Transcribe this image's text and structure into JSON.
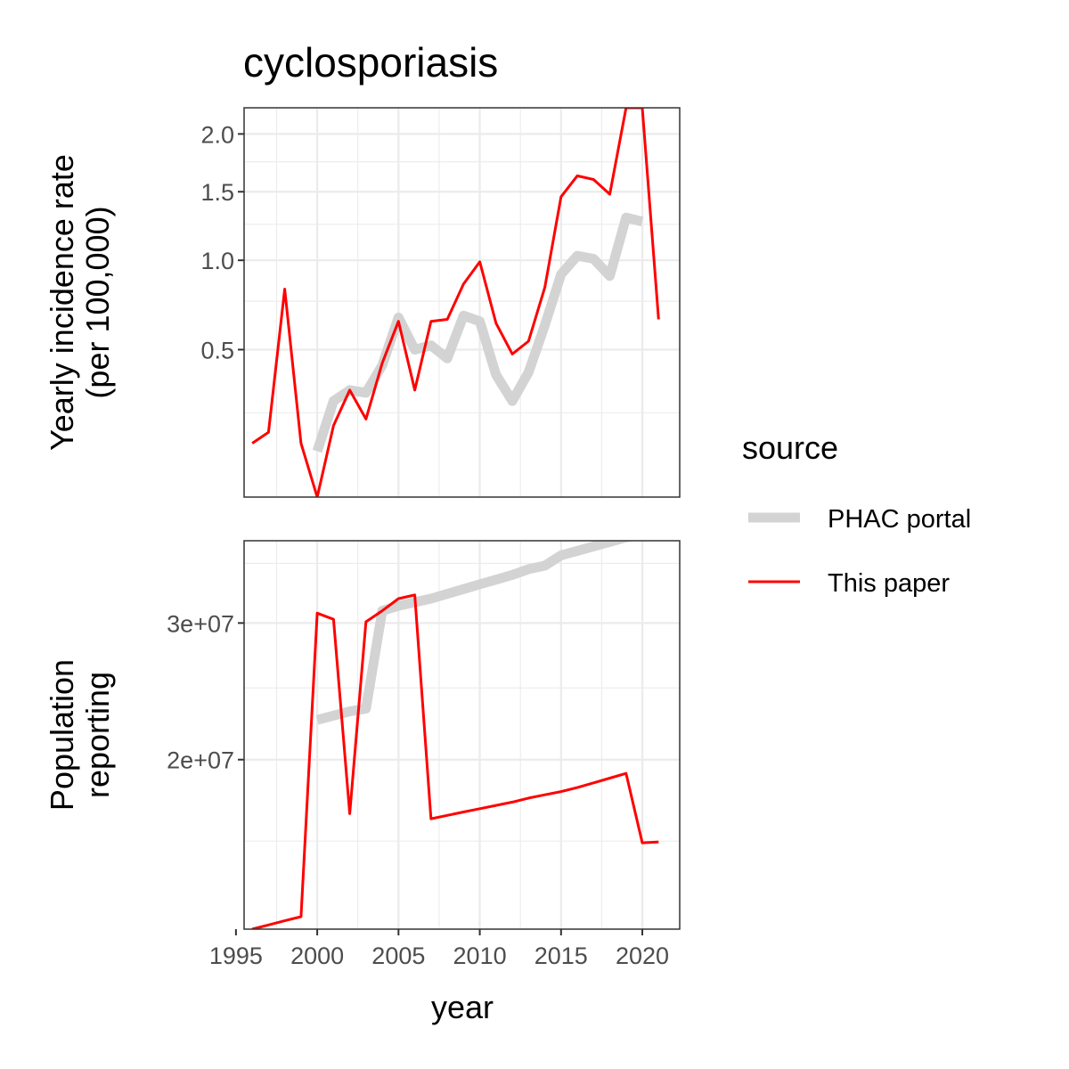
{
  "chart_data": {
    "type": "line",
    "title": "cyclosporiasis",
    "xlabel": "year",
    "x_ticks": [
      1995,
      2000,
      2005,
      2010,
      2015,
      2020
    ],
    "xlim": [
      1995.5,
      2022.3
    ],
    "legend": {
      "title": "source",
      "placement": "right",
      "entries": [
        {
          "label": "PHAC portal",
          "color": "#d3d3d3"
        },
        {
          "label": "This paper",
          "color": "#ff0000"
        }
      ]
    },
    "panels": [
      {
        "id": "incidence",
        "ylabel_lines": [
          "Yearly incidence rate",
          "(per 100,000)"
        ],
        "y_scale": "sqrt",
        "ylim": [
          0.05,
          2.25
        ],
        "y_ticks": [
          0.5,
          1.0,
          1.5,
          2.0
        ],
        "y_tick_labels": [
          "0.5",
          "1.0",
          "1.5",
          "2.0"
        ],
        "y_minor": [
          0.25,
          0.75,
          1.25,
          1.75
        ],
        "grid": true,
        "series": [
          {
            "name": "PHAC portal",
            "color": "#d3d3d3",
            "x": [
              2000,
              2001,
              2002,
              2003,
              2004,
              2005,
              2006,
              2007,
              2008,
              2009,
              2010,
              2011,
              2012,
              2013,
              2014,
              2015,
              2016,
              2017,
              2018,
              2019,
              2020
            ],
            "y": [
              0.14,
              0.29,
              0.33,
              0.32,
              0.43,
              0.66,
              0.5,
              0.52,
              0.46,
              0.67,
              0.64,
              0.39,
              0.29,
              0.4,
              0.62,
              0.91,
              1.03,
              1.01,
              0.9,
              1.3,
              1.27
            ]
          },
          {
            "name": "This paper",
            "color": "#ff0000",
            "x": [
              1996,
              1997,
              1998,
              1999,
              2000,
              2001,
              2002,
              2003,
              2004,
              2005,
              2006,
              2007,
              2008,
              2009,
              2010,
              2011,
              2012,
              2013,
              2014,
              2015,
              2016,
              2017,
              2018,
              2019,
              2020,
              2021
            ],
            "y": [
              0.16,
              0.19,
              0.82,
              0.16,
              0.05,
              0.21,
              0.33,
              0.23,
              0.44,
              0.64,
              0.33,
              0.64,
              0.65,
              0.85,
              0.99,
              0.63,
              0.48,
              0.54,
              0.83,
              1.46,
              1.63,
              1.6,
              1.48,
              2.25,
              2.25,
              0.65
            ]
          }
        ]
      },
      {
        "id": "population",
        "ylabel_lines": [
          "Population",
          "reporting"
        ],
        "y_scale": "sqrt",
        "ylim": [
          10400000,
          37000000
        ],
        "y_ticks": [
          20000000,
          30000000
        ],
        "y_tick_labels": [
          "2e+07",
          "3e+07"
        ],
        "y_minor": [
          15000000,
          25000000,
          35000000
        ],
        "grid": true,
        "series": [
          {
            "name": "PHAC portal",
            "color": "#d3d3d3",
            "x": [
              2000,
              2001,
              2002,
              2003,
              2004,
              2005,
              2006,
              2007,
              2008,
              2009,
              2010,
              2011,
              2012,
              2013,
              2014,
              2015,
              2016,
              2017,
              2018,
              2019,
              2020
            ],
            "y": [
              22700000,
              23000000,
              23300000,
              23500000,
              31000000,
              31400000,
              31700000,
              32000000,
              32400000,
              32800000,
              33200000,
              33600000,
              34000000,
              34500000,
              34800000,
              35700000,
              36100000,
              36500000,
              36900000,
              37300000,
              37600000
            ]
          },
          {
            "name": "This paper",
            "color": "#ff0000",
            "x": [
              1996,
              1997,
              1998,
              1999,
              2000,
              2001,
              2002,
              2003,
              2004,
              2005,
              2006,
              2007,
              2008,
              2009,
              2010,
              2011,
              2012,
              2013,
              2014,
              2015,
              2016,
              2017,
              2018,
              2019,
              2020,
              2021
            ],
            "y": [
              10400000,
              10600000,
              10800000,
              11000000,
              30800000,
              30300000,
              16600000,
              30100000,
              31000000,
              32000000,
              32300000,
              16300000,
              16500000,
              16700000,
              16900000,
              17100000,
              17300000,
              17550000,
              17750000,
              17950000,
              18200000,
              18500000,
              18800000,
              19100000,
              14900000,
              14950000
            ]
          }
        ]
      }
    ]
  }
}
